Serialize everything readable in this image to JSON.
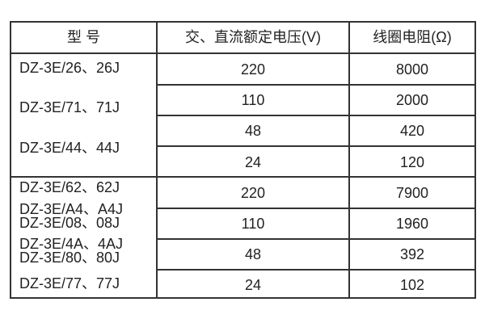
{
  "headers": [
    "型  号",
    "交、直流额定电压(V)",
    "线圈电阻(Ω)"
  ],
  "models": [
    "DZ-3E/26、26J",
    "DZ-3E/71、71J",
    "DZ-3E/44、44J",
    "DZ-3E/62、62J",
    "DZ-3E/A4、A4J",
    "DZ-3E/08、08J",
    "DZ-3E/4A、4AJ",
    "DZ-3E/80、80J",
    "DZ-3E/77、77J"
  ],
  "rows": [
    {
      "voltage": "220",
      "resistance": "8000"
    },
    {
      "voltage": "110",
      "resistance": "2000"
    },
    {
      "voltage": "48",
      "resistance": "420"
    },
    {
      "voltage": "24",
      "resistance": "120"
    },
    {
      "voltage": "220",
      "resistance": "7900"
    },
    {
      "voltage": "110",
      "resistance": "1960"
    },
    {
      "voltage": "48",
      "resistance": "392"
    },
    {
      "voltage": "24",
      "resistance": "102"
    }
  ]
}
